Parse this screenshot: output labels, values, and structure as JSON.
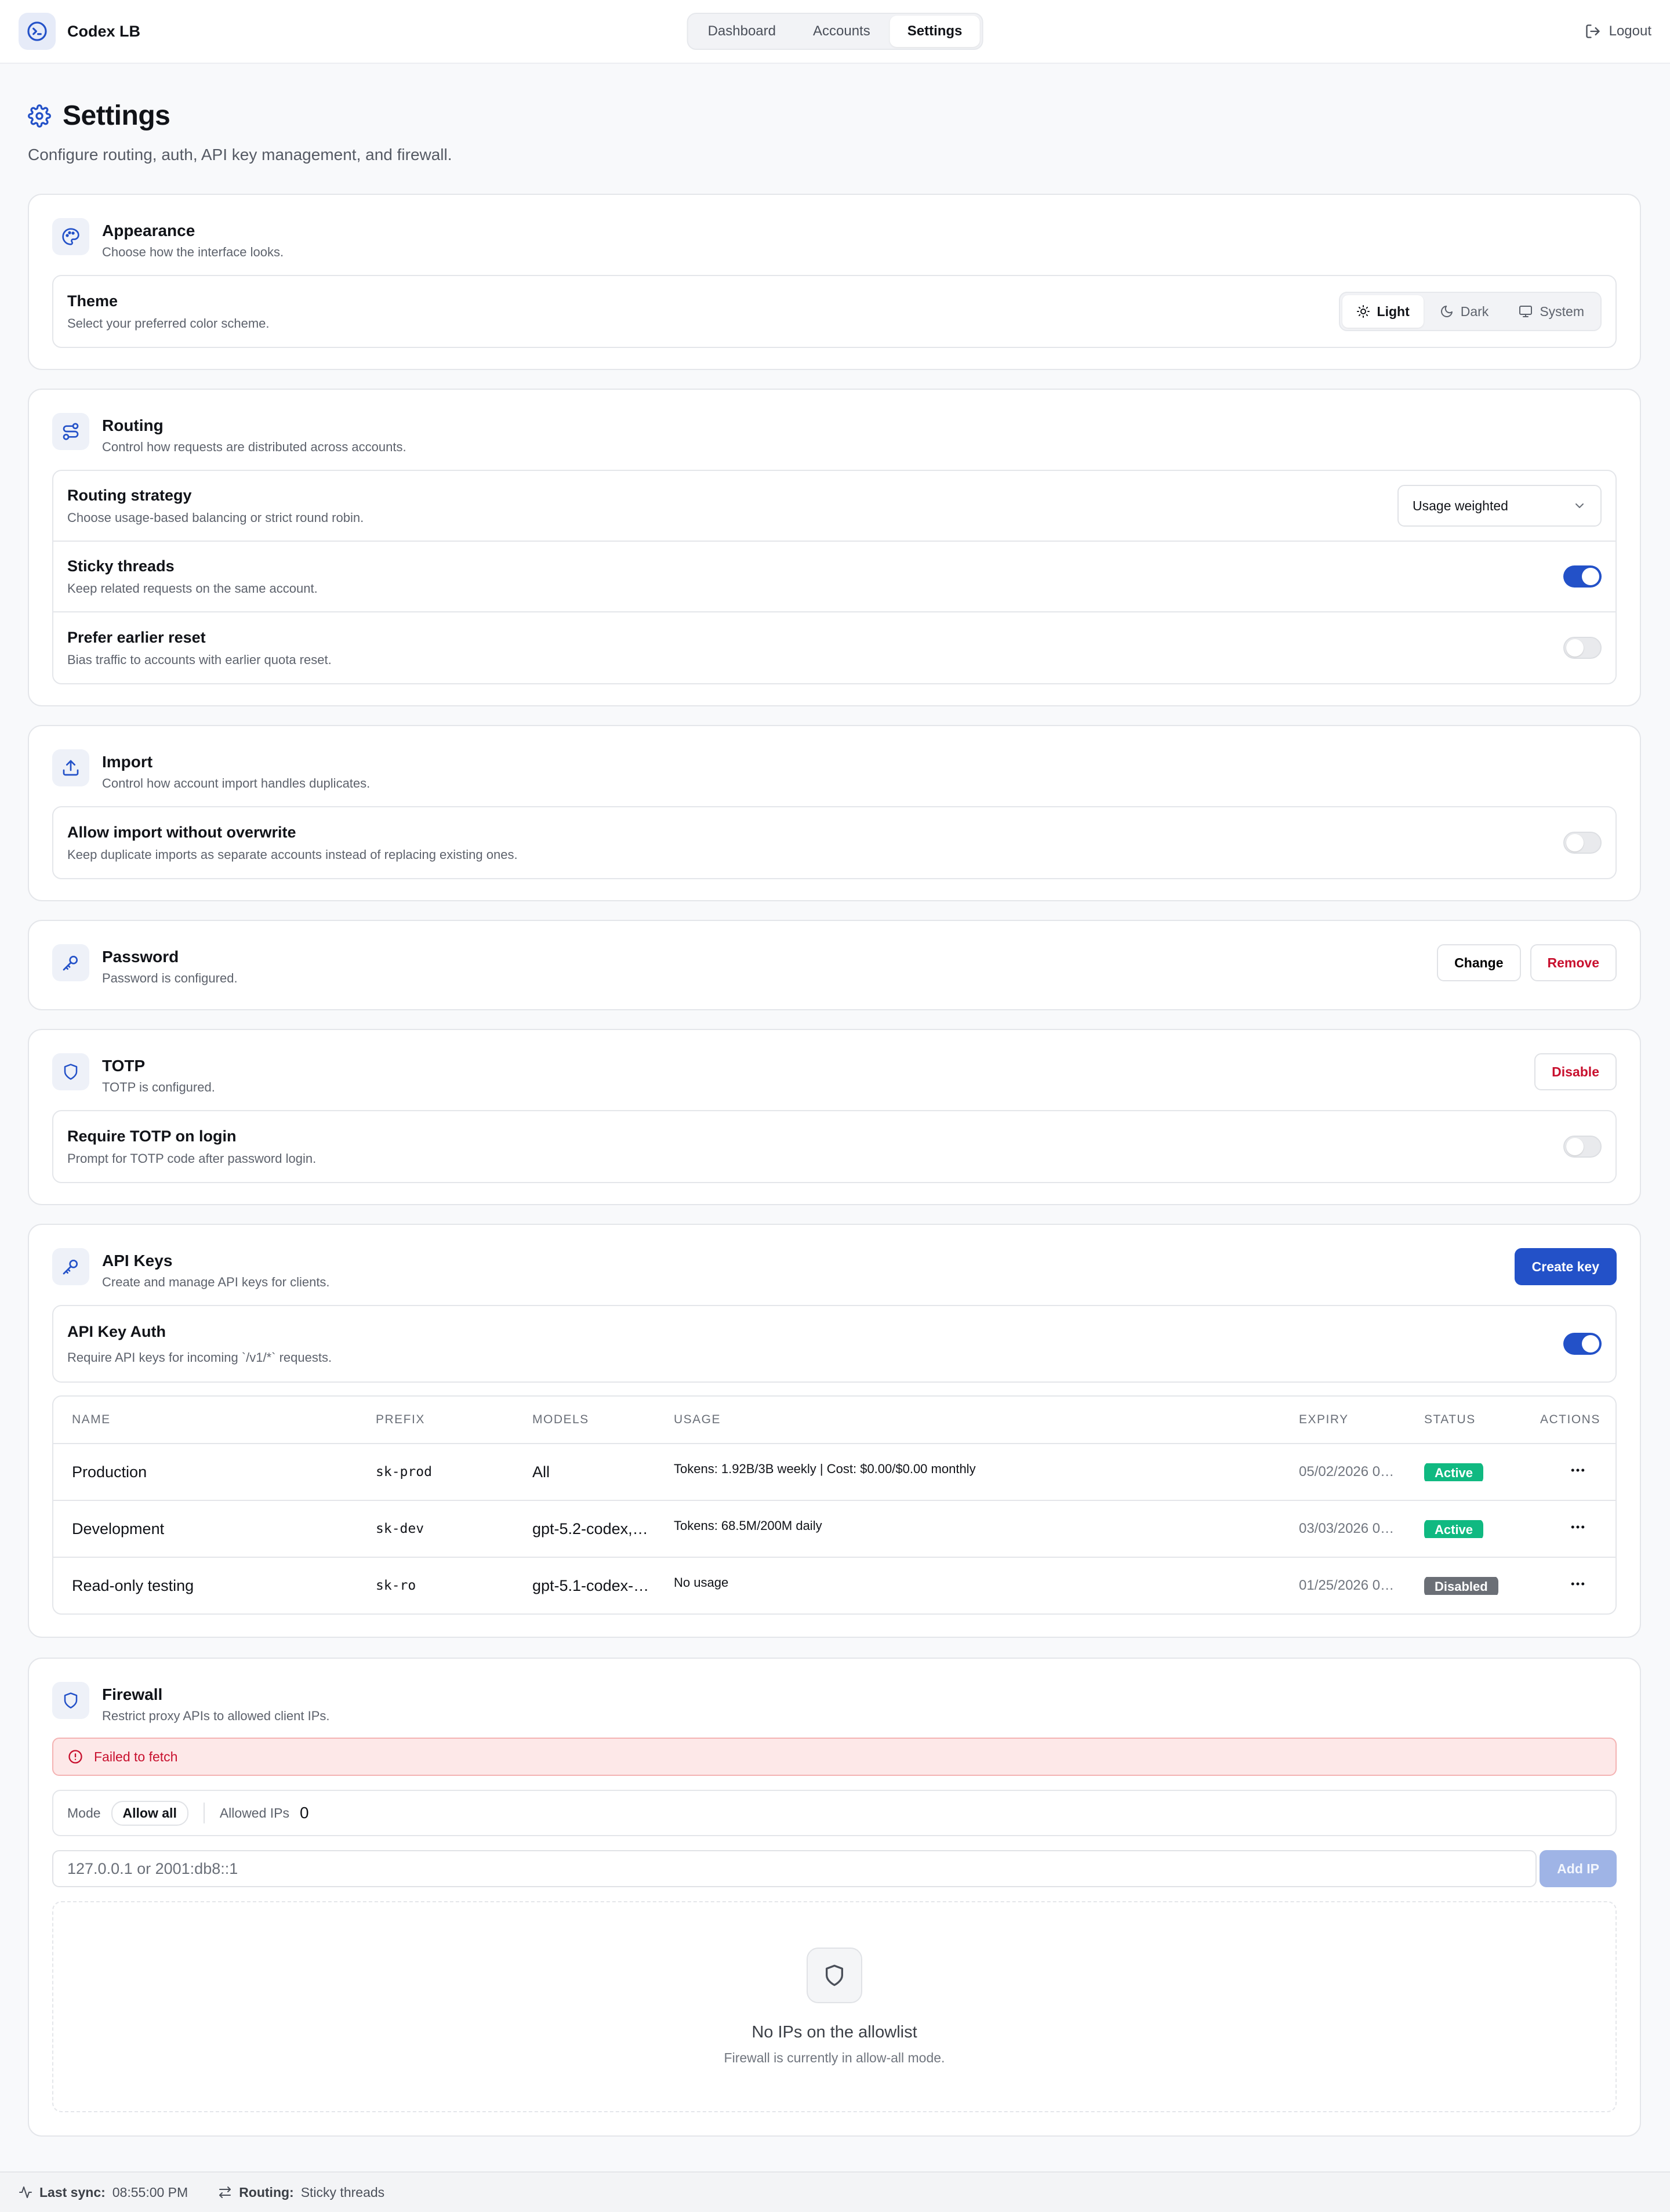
{
  "app": {
    "name": "Codex LB"
  },
  "nav": {
    "tabs": [
      "Dashboard",
      "Accounts",
      "Settings"
    ],
    "active": "Settings"
  },
  "header": {
    "logout": "Logout"
  },
  "page": {
    "title": "Settings",
    "subtitle": "Configure routing, auth, API key management, and firewall."
  },
  "appearance": {
    "title": "Appearance",
    "desc": "Choose how the interface looks.",
    "theme": {
      "title": "Theme",
      "desc": "Select your preferred color scheme.",
      "options": [
        "Light",
        "Dark",
        "System"
      ],
      "selected": "Light"
    }
  },
  "routing": {
    "title": "Routing",
    "desc": "Control how requests are distributed across accounts.",
    "strategy": {
      "title": "Routing strategy",
      "desc": "Choose usage-based balancing or strict round robin.",
      "value": "Usage weighted"
    },
    "sticky": {
      "title": "Sticky threads",
      "desc": "Keep related requests on the same account.",
      "enabled": true
    },
    "prefer_reset": {
      "title": "Prefer earlier reset",
      "desc": "Bias traffic to accounts with earlier quota reset.",
      "enabled": false
    }
  },
  "import": {
    "title": "Import",
    "desc": "Control how account import handles duplicates.",
    "allow": {
      "title": "Allow import without overwrite",
      "desc": "Keep duplicate imports as separate accounts instead of replacing existing ones.",
      "enabled": false
    }
  },
  "password": {
    "title": "Password",
    "desc": "Password is configured.",
    "change_label": "Change",
    "remove_label": "Remove"
  },
  "totp": {
    "title": "TOTP",
    "desc": "TOTP is configured.",
    "disable_label": "Disable",
    "require": {
      "title": "Require TOTP on login",
      "desc": "Prompt for TOTP code after password login.",
      "enabled": false
    }
  },
  "api_keys": {
    "title": "API Keys",
    "desc": "Create and manage API keys for clients.",
    "create_label": "Create key",
    "auth": {
      "title": "API Key Auth",
      "desc": "Require API keys for incoming `/v1/*` requests.",
      "enabled": true
    },
    "columns": [
      "NAME",
      "PREFIX",
      "MODELS",
      "USAGE",
      "EXPIRY",
      "STATUS",
      "ACTIONS"
    ],
    "rows": [
      {
        "name": "Production",
        "prefix": "sk-prod",
        "models": "All",
        "usage": "Tokens: 1.92B/3B weekly | Cost: $0.00/$0.00 monthly",
        "expiry": "05/02/2026 0…",
        "status": "Active"
      },
      {
        "name": "Development",
        "prefix": "sk-dev",
        "models": "gpt-5.2-codex,…",
        "usage": "Tokens: 68.5M/200M daily",
        "expiry": "03/03/2026 0…",
        "status": "Active"
      },
      {
        "name": "Read-only testing",
        "prefix": "sk-ro",
        "models": "gpt-5.1-codex-…",
        "usage": "No usage",
        "expiry": "01/25/2026 0…",
        "status": "Disabled"
      }
    ]
  },
  "firewall": {
    "title": "Firewall",
    "desc": "Restrict proxy APIs to allowed client IPs.",
    "error": "Failed to fetch",
    "mode_label": "Mode",
    "mode_value": "Allow all",
    "allowed_label": "Allowed IPs",
    "allowed_count": "0",
    "ip_placeholder": "127.0.0.1 or 2001:db8::1",
    "add_label": "Add IP",
    "empty_title": "No IPs on the allowlist",
    "empty_desc": "Firewall is currently in allow-all mode."
  },
  "footer": {
    "sync_label": "Last sync:",
    "sync_value": "08:55:00 PM",
    "routing_label": "Routing:",
    "routing_value": "Sticky threads"
  },
  "colors": {
    "accent": "#2351c8",
    "danger": "#c8102e",
    "success": "#10b981"
  }
}
